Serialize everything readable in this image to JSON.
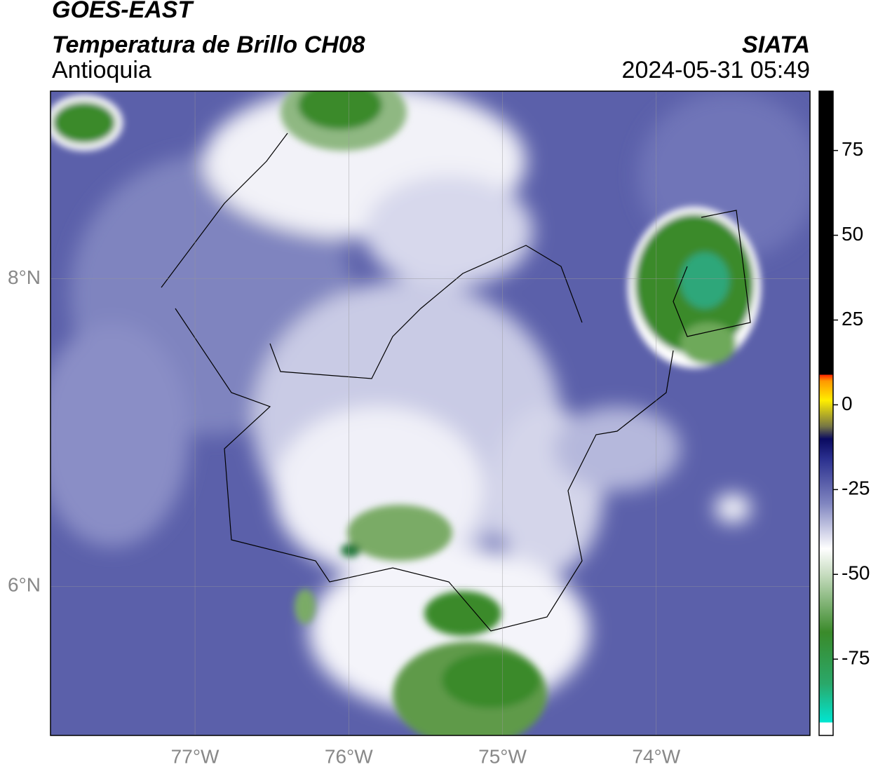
{
  "header": {
    "title": "GOES-EAST",
    "subtitle": "Temperatura de Brillo CH08",
    "region": "Antioquia",
    "source": "SIATA",
    "datetime": "2024-05-31 05:49"
  },
  "map": {
    "xlim": [
      -77.94,
      -73.0
    ],
    "ylim": [
      5.03,
      9.22
    ],
    "xticks": [
      {
        "value": -77,
        "label": "77°W"
      },
      {
        "value": -76,
        "label": "76°W"
      },
      {
        "value": -75,
        "label": "75°W"
      },
      {
        "value": -74,
        "label": "74°W"
      }
    ],
    "yticks": [
      {
        "value": 6,
        "label": "6°N"
      },
      {
        "value": 8,
        "label": "8°N"
      }
    ],
    "grid": true
  },
  "colorbar": {
    "lim": [
      -97.5,
      92.5
    ],
    "ticks": [
      75,
      50,
      25,
      0,
      -25,
      -50,
      -75
    ]
  }
}
